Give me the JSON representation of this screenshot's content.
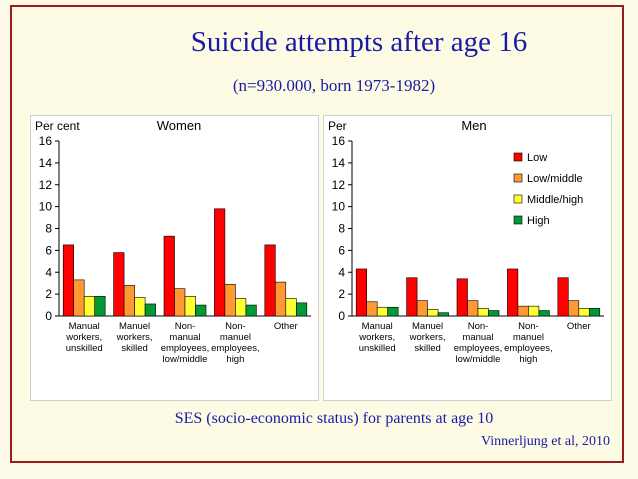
{
  "slide": {
    "title": "Suicide attempts after age 16",
    "subtitle": "(n=930.000, born 1973-1982)",
    "footer": "SES (socio-economic status) for parents at age 10",
    "citation": "Vinnerljung et al, 2010"
  },
  "colors": {
    "Low": "#ff0000",
    "Low/middle": "#ff9933",
    "Middle/high": "#ffff33",
    "High": "#009933"
  },
  "chart_data": [
    {
      "type": "bar",
      "title": "Women",
      "ylabel": "Per cent",
      "ylim": [
        0,
        16
      ],
      "yticks": [
        0,
        2,
        4,
        6,
        8,
        10,
        12,
        14,
        16
      ],
      "categories": [
        [
          "Manual",
          "workers,",
          "unskilled"
        ],
        [
          "Manuel",
          "workers,",
          "skilled"
        ],
        [
          "Non-",
          "manual",
          "employees,",
          "low/middle"
        ],
        [
          "Non-",
          "manuel",
          "employees,",
          "high"
        ],
        [
          "Other"
        ]
      ],
      "series": [
        {
          "name": "Low",
          "values": [
            6.5,
            5.8,
            7.3,
            9.8,
            6.5
          ]
        },
        {
          "name": "Low/middle",
          "values": [
            3.3,
            2.8,
            2.5,
            2.9,
            3.1
          ]
        },
        {
          "name": "Middle/high",
          "values": [
            1.8,
            1.7,
            1.8,
            1.6,
            1.6
          ]
        },
        {
          "name": "High",
          "values": [
            1.8,
            1.1,
            1.0,
            1.0,
            1.2
          ]
        }
      ],
      "legend": "none"
    },
    {
      "type": "bar",
      "title": "Men",
      "ylabel": "Per",
      "ylim": [
        0,
        16
      ],
      "yticks": [
        0,
        2,
        4,
        6,
        8,
        10,
        12,
        14,
        16
      ],
      "categories": [
        [
          "Manual",
          "workers,",
          "unskilled"
        ],
        [
          "Manuel",
          "workers,",
          "skilled"
        ],
        [
          "Non-",
          "manual",
          "employees,",
          "low/middle"
        ],
        [
          "Non-",
          "manuel",
          "employees,",
          "high"
        ],
        [
          "Other"
        ]
      ],
      "series": [
        {
          "name": "Low",
          "values": [
            4.3,
            3.5,
            3.4,
            4.3,
            3.5
          ]
        },
        {
          "name": "Low/middle",
          "values": [
            1.3,
            1.4,
            1.4,
            0.9,
            1.4
          ]
        },
        {
          "name": "Middle/high",
          "values": [
            0.8,
            0.6,
            0.7,
            0.9,
            0.7
          ]
        },
        {
          "name": "High",
          "values": [
            0.8,
            0.3,
            0.5,
            0.5,
            0.7
          ]
        }
      ],
      "legend": "top-right"
    }
  ]
}
